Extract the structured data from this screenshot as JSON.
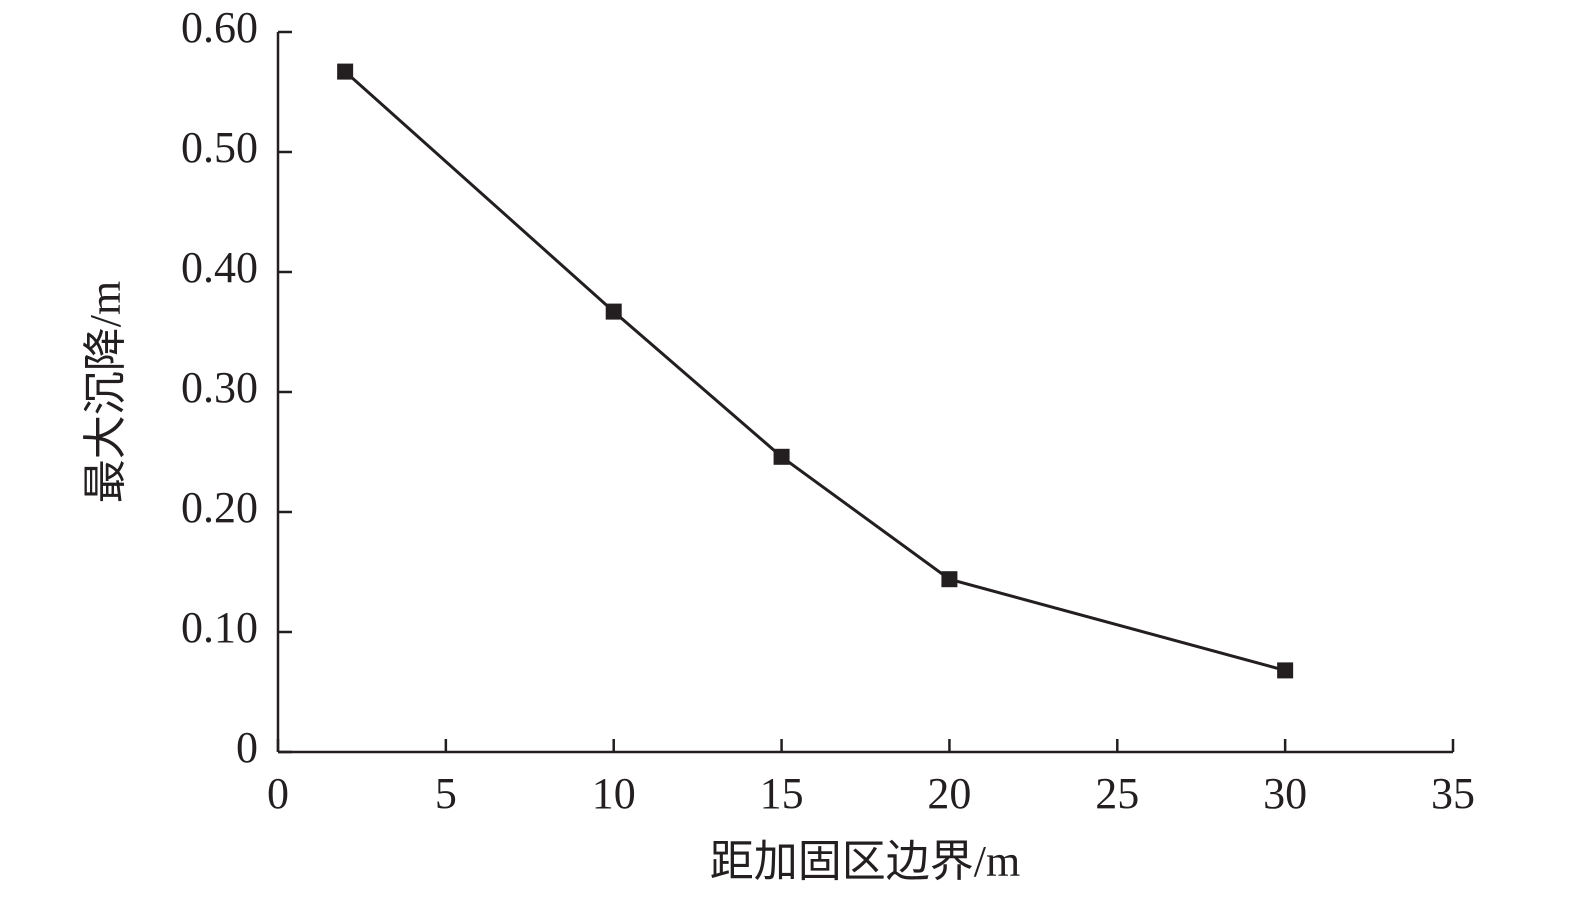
{
  "chart_data": {
    "type": "line",
    "x_label": "距加固区边界/m",
    "y_label": "最大沉降/m",
    "x": [
      2,
      10,
      15,
      20,
      30
    ],
    "series": [
      {
        "name": "最大沉降",
        "color": "#231f20",
        "values": [
          0.567,
          0.367,
          0.246,
          0.144,
          0.068
        ]
      }
    ],
    "xlim": [
      0,
      35
    ],
    "xticks": [
      0,
      5,
      10,
      15,
      20,
      25,
      30,
      35
    ],
    "ylim": [
      0,
      0.6
    ],
    "yticks": [
      0,
      {
        "value": 0.1,
        "label": "0.10"
      },
      {
        "value": 0.2,
        "label": "0.20"
      },
      {
        "value": 0.3,
        "label": "0.30"
      },
      {
        "value": 0.4,
        "label": "0.40"
      },
      {
        "value": 0.5,
        "label": "0.50"
      },
      {
        "value": 0.6,
        "label": "0.60"
      }
    ]
  }
}
